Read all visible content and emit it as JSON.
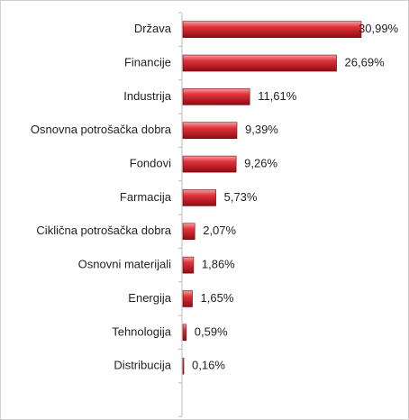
{
  "chart_data": {
    "type": "bar",
    "orientation": "horizontal",
    "categories": [
      "Država",
      "Financije",
      "Industrija",
      "Osnovna potrošačka dobra",
      "Fondovi",
      "Farmacija",
      "Ciklična potrošačka dobra",
      "Osnovni materijali",
      "Energija",
      "Tehnologija",
      "Distribucija"
    ],
    "values": [
      30.99,
      26.69,
      11.61,
      9.39,
      9.26,
      5.73,
      2.07,
      1.86,
      1.65,
      0.59,
      0.16
    ],
    "value_labels": [
      "30,99%",
      "26,69%",
      "11,61%",
      "9,39%",
      "9,26%",
      "5,73%",
      "2,07%",
      "1,86%",
      "1,65%",
      "0,59%",
      "0,16%"
    ],
    "color": "#c0141c"
  }
}
